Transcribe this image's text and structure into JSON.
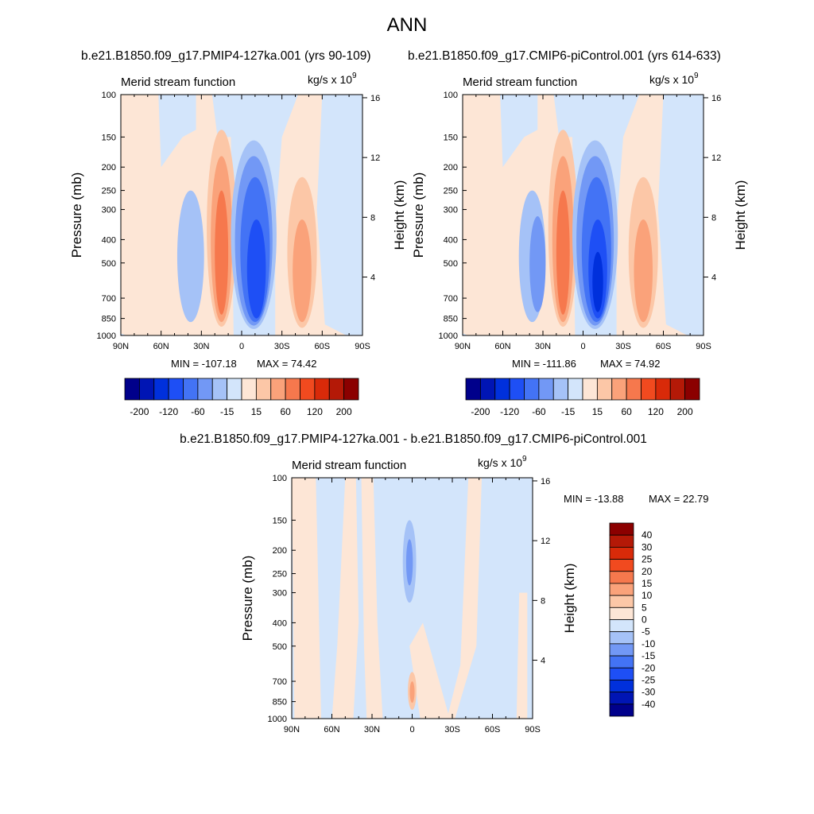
{
  "title": "ANN",
  "colors": {
    "scale": [
      "#00008b",
      "#0015b4",
      "#0030dc",
      "#1e4ff5",
      "#4373f5",
      "#7298f5",
      "#a5c2f7",
      "#d3e5fb",
      "#fde6d6",
      "#fcc7a7",
      "#faa27a",
      "#f6784d",
      "#f14a1f",
      "#d92a09",
      "#b41907",
      "#8b0000"
    ]
  },
  "panels": [
    {
      "title": "b.e21.B1850.f09_g17.PMIP4-127ka.001 (yrs 90-109)",
      "subtitle": "Merid stream function",
      "units": "kg/s x 10",
      "units_exp": "9",
      "ylabel": "Pressure (mb)",
      "ylabel_right": "Height (km)",
      "pressure_ticks": [
        "100",
        "150",
        "200",
        "250",
        "300",
        "400",
        "500",
        "700",
        "850",
        "1000"
      ],
      "height_ticks": [
        "16",
        "12",
        "8",
        "4"
      ],
      "x_ticks": [
        "90N",
        "60N",
        "30N",
        "0",
        "30S",
        "60S",
        "90S"
      ],
      "min_label": "MIN = -107.18",
      "max_label": "MAX =  74.42",
      "colorbar_labels": [
        "-200",
        "-120",
        "-60",
        "-15",
        "15",
        "60",
        "120",
        "200"
      ]
    },
    {
      "title": "b.e21.B1850.f09_g17.CMIP6-piControl.001 (yrs 614-633)",
      "subtitle": "Merid stream function",
      "units": "kg/s x 10",
      "units_exp": "9",
      "ylabel": "Pressure (mb)",
      "ylabel_right": "Height (km)",
      "pressure_ticks": [
        "100",
        "150",
        "200",
        "250",
        "300",
        "400",
        "500",
        "700",
        "850",
        "1000"
      ],
      "height_ticks": [
        "16",
        "12",
        "8",
        "4"
      ],
      "x_ticks": [
        "90N",
        "60N",
        "30N",
        "0",
        "30S",
        "60S",
        "90S"
      ],
      "min_label": "MIN = -111.86",
      "max_label": "MAX =  74.92",
      "colorbar_labels": [
        "-200",
        "-120",
        "-60",
        "-15",
        "15",
        "60",
        "120",
        "200"
      ]
    }
  ],
  "diff_panel": {
    "title": "b.e21.B1850.f09_g17.PMIP4-127ka.001 - b.e21.B1850.f09_g17.CMIP6-piControl.001",
    "subtitle": "Merid stream function",
    "units": "kg/s x 10",
    "units_exp": "9",
    "ylabel": "Pressure (mb)",
    "ylabel_right": "Height (km)",
    "pressure_ticks": [
      "100",
      "150",
      "200",
      "250",
      "300",
      "400",
      "500",
      "700",
      "850",
      "1000"
    ],
    "height_ticks": [
      "16",
      "12",
      "8",
      "4"
    ],
    "x_ticks": [
      "90N",
      "60N",
      "30N",
      "0",
      "30S",
      "60S",
      "90S"
    ],
    "min_label": "MIN = -13.88",
    "max_label": "MAX =  22.79",
    "colorbar_labels": [
      "40",
      "30",
      "25",
      "20",
      "15",
      "10",
      "5",
      "0",
      "-5",
      "-10",
      "-15",
      "-20",
      "-25",
      "-30",
      "-40"
    ]
  },
  "chart_data": [
    {
      "type": "heatmap",
      "title": "b.e21.B1850.f09_g17.PMIP4-127ka.001 (yrs 90-109)",
      "subtitle": "Merid stream function",
      "units": "kg/s x 10^9",
      "xlabel": "",
      "ylabel": "Pressure (mb)",
      "ylabel_right": "Height (km)",
      "xlim": [
        "90N",
        "90S"
      ],
      "ylim_mb": [
        1000,
        100
      ],
      "min": -107.18,
      "max": 74.42,
      "contour_levels": [
        -200,
        -160,
        -120,
        -80,
        -60,
        -40,
        -15,
        0,
        15,
        40,
        60,
        80,
        120,
        160,
        200
      ],
      "features": [
        {
          "name": "northern Hadley cell",
          "lat": "15N",
          "peak_pressure_mb": 700,
          "approx_value": 74
        },
        {
          "name": "southern Hadley cell",
          "lat": "10S",
          "peak_pressure_mb": 700,
          "approx_value": -107
        },
        {
          "name": "southern Ferrel cell",
          "lat": "45S",
          "peak_pressure_mb": 500,
          "approx_value": 50
        },
        {
          "name": "northern Ferrel cell",
          "lat": "40N",
          "peak_pressure_mb": 500,
          "approx_value": -30
        }
      ]
    },
    {
      "type": "heatmap",
      "title": "b.e21.B1850.f09_g17.CMIP6-piControl.001 (yrs 614-633)",
      "subtitle": "Merid stream function",
      "units": "kg/s x 10^9",
      "xlabel": "",
      "ylabel": "Pressure (mb)",
      "ylabel_right": "Height (km)",
      "xlim": [
        "90N",
        "90S"
      ],
      "ylim_mb": [
        1000,
        100
      ],
      "min": -111.86,
      "max": 74.92,
      "contour_levels": [
        -200,
        -160,
        -120,
        -80,
        -60,
        -40,
        -15,
        0,
        15,
        40,
        60,
        80,
        120,
        160,
        200
      ],
      "features": [
        {
          "name": "northern Hadley cell",
          "lat": "15N",
          "peak_pressure_mb": 700,
          "approx_value": 75
        },
        {
          "name": "southern Hadley cell",
          "lat": "10S",
          "peak_pressure_mb": 700,
          "approx_value": -112
        },
        {
          "name": "southern Ferrel cell",
          "lat": "45S",
          "peak_pressure_mb": 500,
          "approx_value": 50
        },
        {
          "name": "northern Ferrel cell",
          "lat": "40N",
          "peak_pressure_mb": 500,
          "approx_value": -30
        }
      ]
    },
    {
      "type": "heatmap",
      "title": "b.e21.B1850.f09_g17.PMIP4-127ka.001 - b.e21.B1850.f09_g17.CMIP6-piControl.001",
      "subtitle": "Merid stream function",
      "units": "kg/s x 10^9",
      "xlabel": "",
      "ylabel": "Pressure (mb)",
      "ylabel_right": "Height (km)",
      "xlim": [
        "90N",
        "90S"
      ],
      "ylim_mb": [
        1000,
        100
      ],
      "min": -13.88,
      "max": 22.79,
      "contour_levels": [
        -40,
        -30,
        -25,
        -20,
        -15,
        -10,
        -5,
        0,
        5,
        10,
        15,
        20,
        25,
        30,
        40
      ],
      "features": [
        {
          "name": "negative anomaly",
          "lat": "0",
          "peak_pressure_mb": 230,
          "approx_value": -14
        },
        {
          "name": "positive anomaly",
          "lat": "0",
          "peak_pressure_mb": 800,
          "approx_value": 23
        }
      ]
    }
  ]
}
